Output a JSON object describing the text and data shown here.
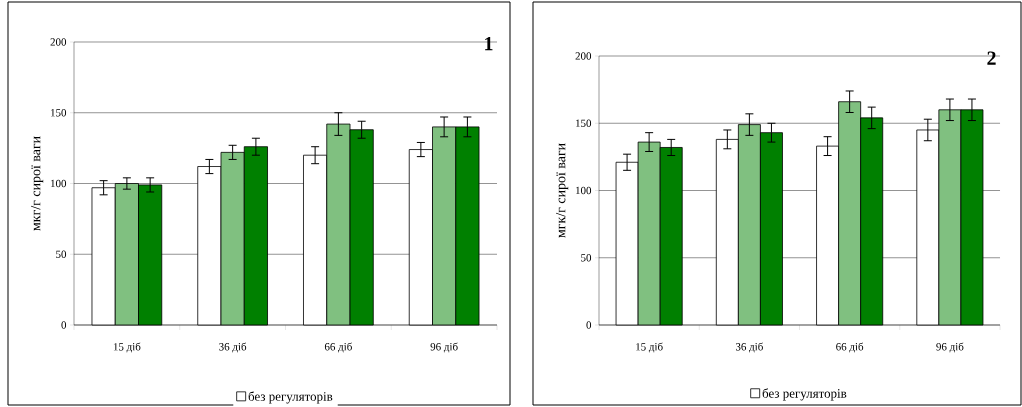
{
  "chart_data": [
    {
      "type": "bar",
      "ylabel": "мкг/г сирої ваги",
      "categories": [
        "15 діб",
        "36 діб",
        "66 діб",
        "96 діб"
      ],
      "series": [
        {
          "name": "без регуляторів",
          "color": "#ffffff",
          "values": [
            97,
            112,
            120,
            124
          ],
          "errors": [
            5,
            5,
            6,
            5
          ]
        },
        {
          "color": "#80c080",
          "values": [
            100,
            122,
            142,
            140
          ],
          "errors": [
            4,
            5,
            8,
            7
          ]
        },
        {
          "color": "#008000",
          "values": [
            99,
            126,
            138,
            140
          ],
          "errors": [
            5,
            6,
            6,
            7
          ]
        }
      ],
      "ylim": [
        0,
        200
      ],
      "yticks": [
        0,
        50,
        100,
        150,
        200
      ],
      "grid": "y",
      "legend": "bottom",
      "annotations": [
        "1"
      ]
    },
    {
      "type": "bar",
      "ylabel": "мгк/г сирої ваги",
      "categories": [
        "15 діб",
        "36 діб",
        "66 діб",
        "96 діб"
      ],
      "series": [
        {
          "name": "без регуляторів",
          "color": "#ffffff",
          "values": [
            121,
            138,
            133,
            145
          ],
          "errors": [
            6,
            7,
            7,
            8
          ]
        },
        {
          "color": "#80c080",
          "values": [
            136,
            149,
            166,
            160
          ],
          "errors": [
            7,
            8,
            8,
            8
          ]
        },
        {
          "color": "#008000",
          "values": [
            132,
            143,
            154,
            160
          ],
          "errors": [
            6,
            7,
            8,
            8
          ]
        }
      ],
      "ylim": [
        0,
        200
      ],
      "yticks": [
        0,
        50,
        100,
        150,
        200
      ],
      "grid": "y",
      "legend": "bottom",
      "annotations": [
        "2"
      ]
    }
  ]
}
